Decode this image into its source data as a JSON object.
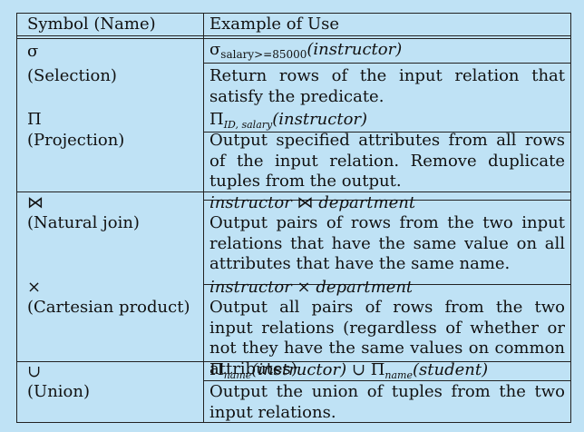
{
  "header": {
    "symbol_name": "Symbol (Name)",
    "example_of_use": "Example of Use"
  },
  "rows": [
    {
      "symbol": "σ",
      "name": "(Selection)",
      "example": {
        "op": "σ",
        "subscript": "salary>=85000",
        "arg": "(instructor)"
      },
      "description": "Return rows of the input relation that satisfy the predicate."
    },
    {
      "symbol": "Π",
      "name": "(Projection)",
      "example": {
        "op": "Π",
        "subscript": "ID, salary",
        "arg": "(instructor)"
      },
      "description": "Output specified attributes from all rows of the input relation. Remove duplicate tuples from the output."
    },
    {
      "symbol": "⋈",
      "name": "(Natural join)",
      "example": {
        "left": "instructor",
        "op": "⋈",
        "right": "department"
      },
      "description": "Output pairs of rows from the two input relations that have the same value on all attributes that have the same name."
    },
    {
      "symbol": "×",
      "name": "(Cartesian product)",
      "example": {
        "left": "instructor",
        "op": "×",
        "right": "department"
      },
      "description": "Output all pairs of rows from the two input relations (regardless of whether or not they have the same values on common attributes)"
    },
    {
      "symbol": "∪",
      "name": "(Union)",
      "example": {
        "op1": "Π",
        "sub1": "name",
        "arg1": "(instructor)",
        "union": "∪",
        "op2": "Π",
        "sub2": "name",
        "arg2": "(student)"
      },
      "description": "Output the union of tuples from the two input relations."
    }
  ]
}
